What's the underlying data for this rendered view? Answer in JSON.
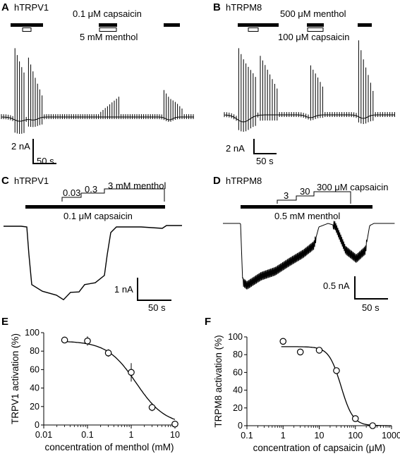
{
  "panels": {
    "A": {
      "letter": "A",
      "channel": "hTRPV1",
      "bar_top_label": "0.1 μM capsaicin",
      "bar_bottom_label": "5 mM menthol",
      "scale_y": "2 nA",
      "scale_x": "50 s"
    },
    "B": {
      "letter": "B",
      "channel": "hTRPM8",
      "bar_top_label": "500 μM menthol",
      "bar_bottom_label": "100 μM capsaicin",
      "scale_y": "2 nA",
      "scale_x": "50 s"
    },
    "C": {
      "letter": "C",
      "channel": "hTRPV1",
      "steps": [
        "0.03",
        "0.3",
        "3 mM menthol"
      ],
      "bar_label": "0.1 μM capsaicin",
      "scale_y": "1 nA",
      "scale_x": "50 s"
    },
    "D": {
      "letter": "D",
      "channel": "hTRPM8",
      "steps": [
        "3",
        "30",
        "300 μM capsaicin"
      ],
      "bar_label": "0.5 mM menthol",
      "scale_y": "0.5 nA",
      "scale_x": "50 s"
    },
    "E": {
      "letter": "E"
    },
    "F": {
      "letter": "F"
    }
  },
  "chart_data": [
    {
      "panel": "E",
      "type": "scatter",
      "xlabel": "concentration of menthol (mM)",
      "ylabel": "TRPV1 activation (%)",
      "xscale": "log",
      "xlim": [
        0.01,
        10
      ],
      "ylim": [
        0,
        100
      ],
      "xticks": [
        "0.01",
        "0.1",
        "1",
        "10"
      ],
      "yticks": [
        "0",
        "20",
        "40",
        "60",
        "80",
        "100"
      ],
      "points": [
        {
          "x": 0.03,
          "y": 92,
          "err": 2
        },
        {
          "x": 0.1,
          "y": 91,
          "err": 5
        },
        {
          "x": 0.3,
          "y": 78,
          "err": 4
        },
        {
          "x": 1,
          "y": 57,
          "err": 10
        },
        {
          "x": 3,
          "y": 19,
          "err": 4
        },
        {
          "x": 10,
          "y": 1,
          "err": 1
        }
      ],
      "fit": {
        "top": 91,
        "bottom": 0,
        "ic50": 1.3,
        "hill": 1.3
      }
    },
    {
      "panel": "F",
      "type": "scatter",
      "xlabel": "concentration of capsaicin (μM)",
      "ylabel": "TRPM8 activation (%)",
      "xscale": "log",
      "xlim": [
        0.1,
        1000
      ],
      "ylim": [
        0,
        100
      ],
      "xticks": [
        "0.1",
        "1",
        "10",
        "100",
        "1000"
      ],
      "yticks": [
        "0",
        "20",
        "40",
        "60",
        "80",
        "100"
      ],
      "points": [
        {
          "x": 1,
          "y": 95,
          "err": 3
        },
        {
          "x": 3,
          "y": 83,
          "err": 3
        },
        {
          "x": 10,
          "y": 85,
          "err": 2
        },
        {
          "x": 30,
          "y": 62,
          "err": 3
        },
        {
          "x": 100,
          "y": 8,
          "err": 3
        },
        {
          "x": 300,
          "y": 0,
          "err": 1
        }
      ],
      "fit": {
        "top": 89,
        "bottom": 0,
        "ic50": 40,
        "hill": 2.6
      }
    }
  ]
}
